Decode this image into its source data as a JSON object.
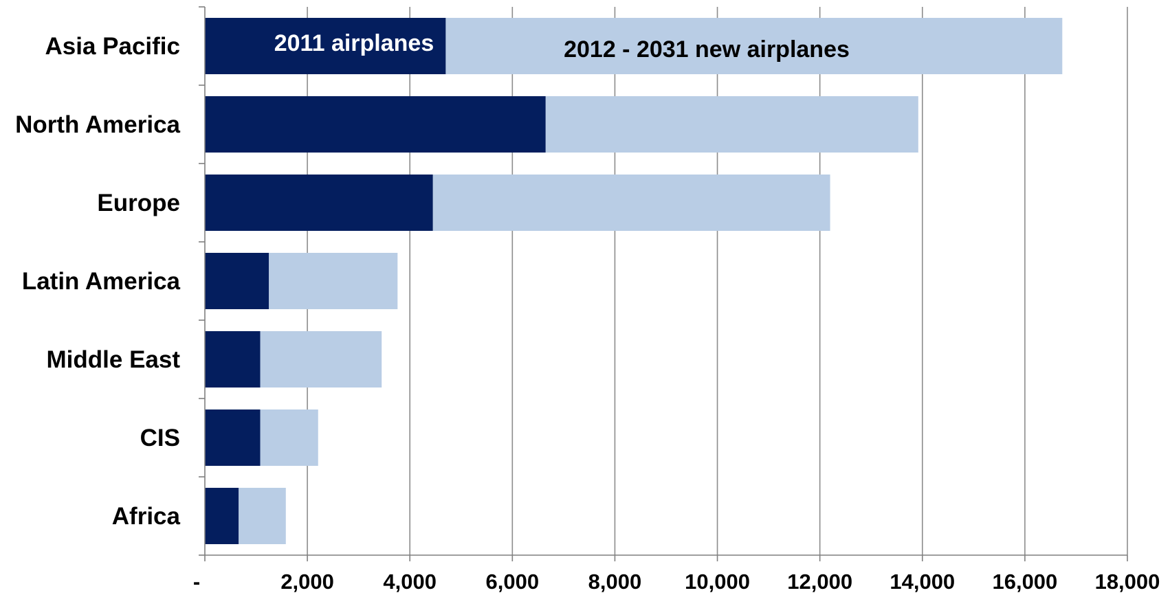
{
  "chart_data": {
    "type": "bar",
    "orientation": "horizontal",
    "stacked": true,
    "categories": [
      "Asia Pacific",
      "North America",
      "Europe",
      "Latin America",
      "Middle East",
      "CIS",
      "Africa"
    ],
    "series": [
      {
        "name": "2011 airplanes",
        "values": [
          4700,
          6650,
          4450,
          1250,
          1080,
          1080,
          660
        ],
        "color": "#041e5e",
        "label_color": "#ffffff"
      },
      {
        "name": "2012 - 2031 new airplanes",
        "values": [
          12030,
          7270,
          7750,
          2510,
          2370,
          1130,
          920
        ],
        "color": "#b9cde5",
        "label_color": "#000000"
      }
    ],
    "xlim": [
      0,
      18000
    ],
    "xticks": [
      0,
      2000,
      4000,
      6000,
      8000,
      10000,
      12000,
      14000,
      16000,
      18000
    ],
    "xtick_labels": [
      "-",
      "2,000",
      "4,000",
      "6,000",
      "8,000",
      "10,000",
      "12,000",
      "14,000",
      "16,000",
      "18,000"
    ],
    "grid": true,
    "grid_color": "#8c8c8c",
    "title": "",
    "xlabel": "",
    "ylabel": ""
  }
}
